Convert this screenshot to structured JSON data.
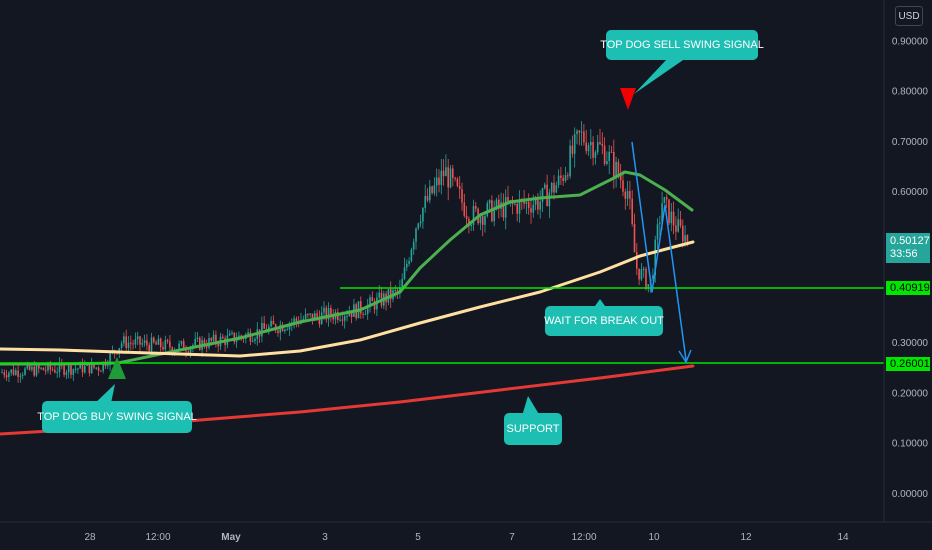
{
  "currency_button": "USD",
  "price_axis": {
    "ticks": [
      "0.90000",
      "0.80000",
      "0.70000",
      "0.60000",
      "0.30000",
      "0.20000",
      "0.10000",
      "0.00000"
    ],
    "current_price": "0.50127",
    "countdown": "33:56",
    "resistance_label": "0.40919",
    "support_label": "0.26001"
  },
  "time_axis": {
    "ticks": [
      "28",
      "12:00",
      "May",
      "3",
      "5",
      "7",
      "12:00",
      "10",
      "12",
      "14"
    ]
  },
  "annotations": {
    "sell_signal": "TOP DOG SELL SWING SIGNAL",
    "buy_signal": "TOP DOG BUY SWING SIGNAL",
    "break_out": "WAIT FOR BREAK OUT",
    "support": "SUPPORT"
  },
  "colors": {
    "background": "#131722",
    "candle_up": "#26a69a",
    "candle_down": "#ef5350",
    "ma_green": "#4caf50",
    "ma_yellow": "#ffe0a0",
    "ma_red": "#e53935",
    "level_line": "#00e600",
    "callout": "#1ebfb3",
    "projection": "#2196f3"
  },
  "chart_data": {
    "type": "candlestick",
    "ylim": [
      -0.05,
      0.95
    ],
    "levels": [
      0.40919,
      0.26001
    ],
    "current_price": 0.50127,
    "price_path": [
      {
        "t": "27",
        "price": 0.24
      },
      {
        "t": "28",
        "price": 0.25
      },
      {
        "t": "28 12:00",
        "price": 0.3
      },
      {
        "t": "May 1",
        "price": 0.28
      },
      {
        "t": "2",
        "price": 0.32
      },
      {
        "t": "3",
        "price": 0.35
      },
      {
        "t": "4",
        "price": 0.4
      },
      {
        "t": "5",
        "price": 0.64
      },
      {
        "t": "6",
        "price": 0.55
      },
      {
        "t": "7",
        "price": 0.57
      },
      {
        "t": "8",
        "price": 0.71
      },
      {
        "t": "9",
        "price": 0.6
      },
      {
        "t": "9 12:00",
        "price": 0.42
      },
      {
        "t": "10",
        "price": 0.56
      },
      {
        "t": "10 12:00",
        "price": 0.5
      }
    ],
    "moving_averages": [
      {
        "color": "green",
        "values": [
          0.26,
          0.26,
          0.28,
          0.3,
          0.33,
          0.36,
          0.4,
          0.5,
          0.57,
          0.585,
          0.6,
          0.64,
          0.62,
          0.56
        ]
      },
      {
        "color": "yellow",
        "values": [
          0.29,
          0.285,
          0.27,
          0.29,
          0.31,
          0.34,
          0.38,
          0.43,
          0.44,
          0.47,
          0.5
        ]
      },
      {
        "color": "red",
        "values": [
          0.12,
          0.14,
          0.16,
          0.18,
          0.2,
          0.23,
          0.26
        ]
      }
    ]
  }
}
